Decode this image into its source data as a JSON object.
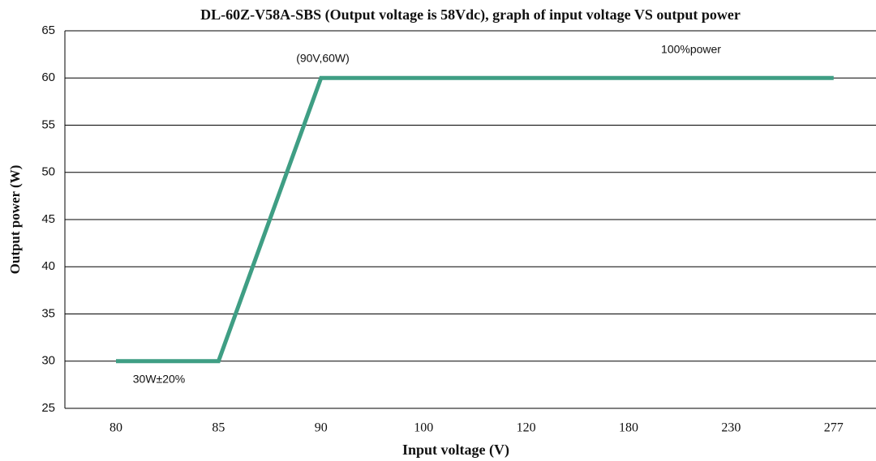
{
  "chart_data": {
    "type": "line",
    "title": "DL-60Z-V58A-SBS (Output voltage is 58Vdc), graph of input voltage VS output power",
    "x_label": "Input voltage (V)",
    "y_label": "Output power (W)",
    "categories": [
      "80",
      "85",
      "90",
      "100",
      "120",
      "180",
      "230",
      "277"
    ],
    "series": [
      {
        "name": "Output power",
        "color": "#3f9e84",
        "values": [
          30,
          30,
          60,
          60,
          60,
          60,
          60,
          60
        ]
      }
    ],
    "ylim": [
      25,
      65
    ],
    "yticks": [
      25,
      30,
      35,
      40,
      45,
      50,
      55,
      60,
      65
    ],
    "grid": true,
    "annotations": [
      "(90V,60W)",
      "100%power",
      "30W±20%"
    ]
  }
}
